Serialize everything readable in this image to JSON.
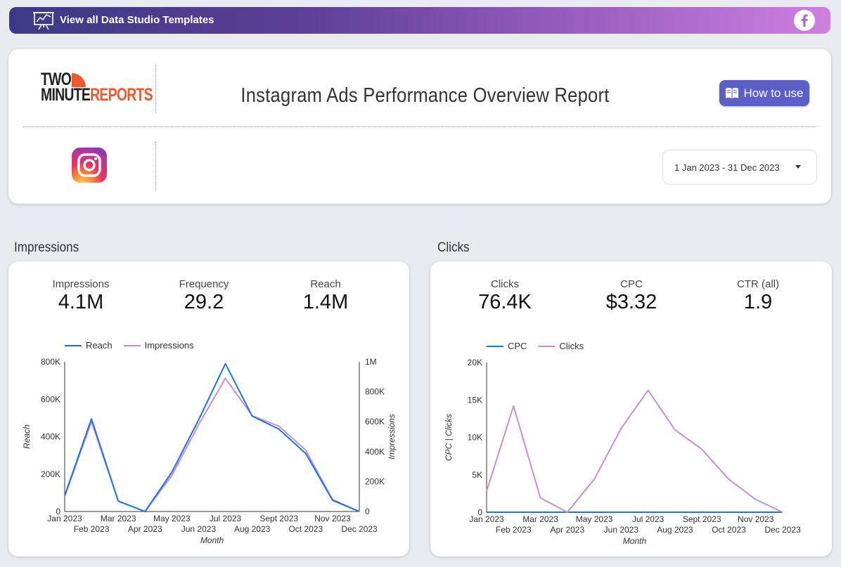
{
  "banner": {
    "text": "View all Data Studio Templates",
    "chart_icon": "presentation-chart-icon",
    "social_icon": "facebook-icon"
  },
  "header": {
    "logo_line1": "TWO",
    "logo_line2a": "MINUTE",
    "logo_line2b": "REPORTS",
    "title": "Instagram Ads Performance Overview Report",
    "how_to_use": "How to use",
    "date_range": "1 Jan 2023 - 31 Dec 2023"
  },
  "colors": {
    "accent": "#5b5fc7",
    "reach": "#1a73e8",
    "impressions": "#c78ddb",
    "cpc": "#1a73e8",
    "clicks": "#c78ddb"
  },
  "impressions_section": {
    "title": "Impressions",
    "kpis": [
      {
        "label": "Impressions",
        "value": "4.1M"
      },
      {
        "label": "Frequency",
        "value": "29.2"
      },
      {
        "label": "Reach",
        "value": "1.4M"
      }
    ]
  },
  "clicks_section": {
    "title": "Clicks",
    "kpis": [
      {
        "label": "Clicks",
        "value": "76.4K"
      },
      {
        "label": "CPC",
        "value": "$3.32"
      },
      {
        "label": "CTR (all)",
        "value": "1.9"
      }
    ]
  },
  "chart_data": [
    {
      "type": "line",
      "title": "",
      "xlabel": "Month",
      "ylabel": "Reach",
      "y2label": "Impressions",
      "categories": [
        "Jan 2023",
        "Feb 2023",
        "Mar 2023",
        "Apr 2023",
        "May 2023",
        "Jun 2023",
        "Jul 2023",
        "Aug 2023",
        "Sept 2023",
        "Oct 2023",
        "Nov 2023",
        "Dec 2023"
      ],
      "ylim": [
        0,
        800000
      ],
      "y2lim": [
        0,
        1000000
      ],
      "yticks": [
        "0",
        "200K",
        "400K",
        "600K",
        "800K"
      ],
      "y2ticks": [
        "0",
        "200K",
        "400K",
        "600K",
        "800K",
        "1M"
      ],
      "legend": [
        "Reach",
        "Impressions"
      ],
      "series": [
        {
          "name": "Reach",
          "axis": "left",
          "values": [
            85000,
            495000,
            55000,
            0,
            210000,
            490000,
            790000,
            510000,
            440000,
            310000,
            60000,
            0
          ]
        },
        {
          "name": "Impressions",
          "axis": "right",
          "values": [
            100000,
            600000,
            70000,
            0,
            240000,
            580000,
            890000,
            640000,
            570000,
            410000,
            80000,
            0
          ]
        }
      ]
    },
    {
      "type": "line",
      "title": "",
      "xlabel": "Month",
      "ylabel": "CPC | Clicks",
      "categories": [
        "Jan 2023",
        "Feb 2023",
        "Mar 2023",
        "Apr 2023",
        "May 2023",
        "Jun 2023",
        "Jul 2023",
        "Aug 2023",
        "Sept 2023",
        "Oct 2023",
        "Nov 2023",
        "Dec 2023"
      ],
      "ylim": [
        0,
        20000
      ],
      "yticks": [
        "0",
        "5K",
        "10K",
        "15K",
        "20K"
      ],
      "legend": [
        "CPC",
        "Clicks"
      ],
      "series": [
        {
          "name": "CPC",
          "values": [
            3,
            3,
            3,
            3,
            3,
            3,
            3,
            3,
            3,
            3,
            3,
            3
          ]
        },
        {
          "name": "Clicks",
          "values": [
            2800,
            14200,
            1900,
            0,
            4400,
            11200,
            16300,
            11000,
            8400,
            4400,
            1700,
            0
          ]
        }
      ]
    }
  ]
}
